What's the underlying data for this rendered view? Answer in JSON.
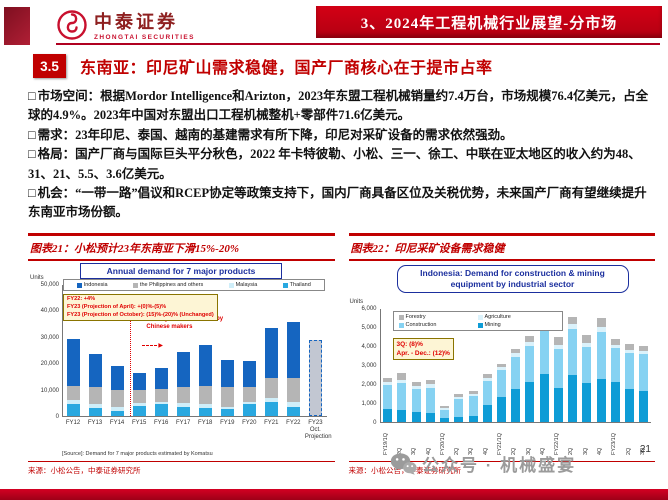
{
  "header": {
    "logo_cn": "中泰证券",
    "logo_en": "ZHONGTAI SECURITIES",
    "banner": "3、2024年工程机械行业展望-分市场"
  },
  "title": {
    "badge": "3.5",
    "text": "东南亚：印尼矿山需求稳健，国产厂商核心在于提市占率"
  },
  "bullets": [
    {
      "label": "市场空间：",
      "text": "根据Mordor Intelligence和Arizton，2023年东盟工程机械销量约7.4万台，市场规模76.4亿美元，占全球的4.9%。2023年中国对东盟出口工程机械整机+零部件71.6亿美元。"
    },
    {
      "label": "需求：",
      "text": "23年印尼、泰国、越南的基建需求有所下降，印尼对采矿设备的需求依然强劲。"
    },
    {
      "label": "格局：",
      "text": "国产厂商与国际巨头平分秋色，2022 年卡特彼勒、小松、三一、徐工、中联在亚太地区的收入约为48、31、21、5.5、3.6亿美元。"
    },
    {
      "label": "机会：",
      "text": "“一带一路”倡议和RCEP协定等政策支持下，国内厂商具备区位及关税优势，未来国产厂商有望继续提升东南亚市场份额。"
    }
  ],
  "figures": [
    {
      "caption": "图表21：小松预计23年东南亚下滑15%-20%",
      "source": "来源：小松公告，中泰证券研究所"
    },
    {
      "caption": "图表22：印尼采矿设备需求稳健",
      "source": "来源：小松公告，中泰证券研究所"
    }
  ],
  "chart_data": [
    {
      "type": "bar",
      "stacked": true,
      "title": "Annual demand for 7 major products",
      "unit_label": "Units",
      "ylim": [
        0,
        50000
      ],
      "yticks": [
        "50,000",
        "40,000",
        "30,000",
        "20,000",
        "10,000",
        "0"
      ],
      "categories": [
        "FY12",
        "FY13",
        "FY14",
        "FY15",
        "FY16",
        "FY17",
        "FY18",
        "FY19",
        "FY20",
        "FY21",
        "FY22",
        "FY23\nOct.\nProjection"
      ],
      "legend": [
        {
          "name": "Indonesia",
          "color": "#1565c0"
        },
        {
          "name": "the Philippines and others",
          "color": "#b5b5b5"
        },
        {
          "name": "Malaysia",
          "color": "#cfeef9"
        },
        {
          "name": "Thailand",
          "color": "#29a8e0"
        }
      ],
      "series": [
        {
          "name": "Thailand",
          "color": "#29a8e0",
          "values": [
            4500,
            3000,
            2000,
            4000,
            4500,
            3500,
            3000,
            2500,
            4500,
            5500,
            3500,
            0
          ]
        },
        {
          "name": "Malaysia",
          "color": "#cfeef9",
          "values": [
            1500,
            1500,
            1500,
            1000,
            1000,
            1500,
            1500,
            1000,
            1000,
            1500,
            2000,
            0
          ]
        },
        {
          "name": "the Philippines and others",
          "color": "#b5b5b5",
          "values": [
            5500,
            6500,
            6500,
            5000,
            5000,
            6000,
            7000,
            7500,
            5500,
            7500,
            9000,
            0
          ]
        },
        {
          "name": "Indonesia",
          "color": "#1565c0",
          "values": [
            18000,
            12500,
            9000,
            6500,
            8000,
            13500,
            15500,
            10500,
            10000,
            19000,
            21500,
            0
          ]
        }
      ],
      "projection": {
        "index": 11,
        "total": 29000,
        "color": "#c2c7d2",
        "border": "#1565c0"
      },
      "annotations": {
        "box_lines": [
          "FY22: +4%",
          "FY23 (Projection of April): +(0)%-(5)%",
          "FY23 (Projection of October): (15)%-(20)% (Unchanged)"
        ],
        "note": "Demand including machines made by Chinese makers"
      },
      "source_note": "[Source]: Demand for 7 major products estimated by Komatsu"
    },
    {
      "type": "bar",
      "stacked": true,
      "title": "Indonesia: Demand for construction & mining equipment by industrial sector",
      "unit_label": "Units",
      "ylim": [
        0,
        6000
      ],
      "yticks": [
        "6,000",
        "5,000",
        "4,000",
        "3,000",
        "2,000",
        "1,000",
        "0"
      ],
      "categories": [
        "FY19/1Q",
        "2Q",
        "3Q",
        "4Q",
        "FY20/1Q",
        "2Q",
        "3Q",
        "4Q",
        "FY21/1Q",
        "2Q",
        "3Q",
        "4Q",
        "FY22/1Q",
        "2Q",
        "3Q",
        "4Q",
        "FY23/1Q",
        "2Q",
        "3Q"
      ],
      "legend": [
        {
          "name": "Forestry",
          "color": "#b5b5b5"
        },
        {
          "name": "Agriculture",
          "color": "#dbf2fb"
        },
        {
          "name": "Construction",
          "color": "#86d2f2"
        },
        {
          "name": "Mining",
          "color": "#0e9cd6"
        }
      ],
      "series": [
        {
          "name": "Mining",
          "color": "#0e9cd6",
          "values": [
            700,
            650,
            550,
            500,
            200,
            250,
            300,
            900,
            1350,
            1750,
            2100,
            2550,
            1800,
            2500,
            2050,
            2300,
            2100,
            1750,
            1650
          ]
        },
        {
          "name": "Construction",
          "color": "#86d2f2",
          "values": [
            1250,
            1400,
            1200,
            1300,
            450,
            950,
            1100,
            1300,
            1400,
            1700,
            1950,
            2600,
            2100,
            2450,
            1950,
            2500,
            1850,
            1900,
            1950
          ]
        },
        {
          "name": "Agriculture",
          "color": "#dbf2fb",
          "values": [
            150,
            200,
            150,
            200,
            100,
            150,
            100,
            150,
            150,
            200,
            200,
            250,
            200,
            250,
            200,
            250,
            150,
            150,
            150
          ]
        },
        {
          "name": "Forestry",
          "color": "#b5b5b5",
          "values": [
            250,
            350,
            250,
            250,
            100,
            150,
            150,
            200,
            200,
            250,
            300,
            500,
            400,
            400,
            400,
            450,
            300,
            350,
            300
          ]
        }
      ],
      "annotations": {
        "box_lines": [
          "3Q: (8)%",
          "Apr. - Dec.: (12)%"
        ]
      }
    }
  ],
  "watermark": "公众号 · 机械盛宴",
  "page_number": "21",
  "colors": {
    "accent_red": "#c00000",
    "dark_red": "#8e1022",
    "navy": "#1b2f9e",
    "bright_red": "#e00000"
  }
}
